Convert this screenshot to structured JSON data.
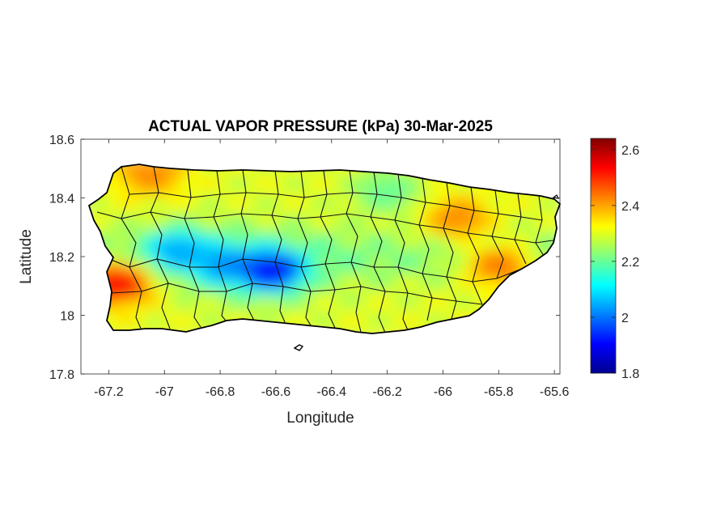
{
  "chart_data": {
    "type": "heatmap",
    "title": "ACTUAL VAPOR PRESSURE (kPa) 30-Mar-2025",
    "xlabel": "Longitude",
    "ylabel": "Latitude",
    "xlim": [
      -67.3,
      -65.58
    ],
    "ylim": [
      17.8,
      18.6
    ],
    "x_ticks": [
      -67.2,
      -67.0,
      -66.8,
      -66.6,
      -66.4,
      -66.2,
      -66.0,
      -65.8,
      -65.6
    ],
    "x_tick_labels": [
      "-67.2",
      "-67",
      "-66.8",
      "-66.6",
      "-66.4",
      "-66.2",
      "-66",
      "-65.8",
      "-65.6"
    ],
    "y_ticks": [
      17.8,
      18.0,
      18.2,
      18.4,
      18.6
    ],
    "y_tick_labels": [
      "17.8",
      "18",
      "18.2",
      "18.4",
      "18.6"
    ],
    "colorbar": {
      "colormap": "jet",
      "range": [
        1.8,
        2.64
      ],
      "ticks": [
        1.8,
        2.0,
        2.2,
        2.4,
        2.6
      ],
      "tick_labels": [
        "1.8",
        "2",
        "2.2",
        "2.4",
        "2.6"
      ],
      "colors": [
        "#00008f",
        "#0000ff",
        "#0080ff",
        "#00ffff",
        "#80ff80",
        "#ffff00",
        "#ff8000",
        "#ff0000",
        "#800000"
      ]
    },
    "grid": false,
    "field_features": [
      {
        "lon": -66.62,
        "lat": 18.15,
        "value": 1.82
      },
      {
        "lon": -66.78,
        "lat": 18.17,
        "value": 1.98
      },
      {
        "lon": -66.95,
        "lat": 18.22,
        "value": 2.0
      },
      {
        "lon": -67.17,
        "lat": 18.11,
        "value": 2.6
      },
      {
        "lon": -65.95,
        "lat": 18.33,
        "value": 2.45
      },
      {
        "lon": -65.8,
        "lat": 18.17,
        "value": 2.48
      },
      {
        "lon": -66.2,
        "lat": 18.42,
        "value": 2.18
      },
      {
        "lon": -67.05,
        "lat": 18.48,
        "value": 2.45
      }
    ]
  }
}
